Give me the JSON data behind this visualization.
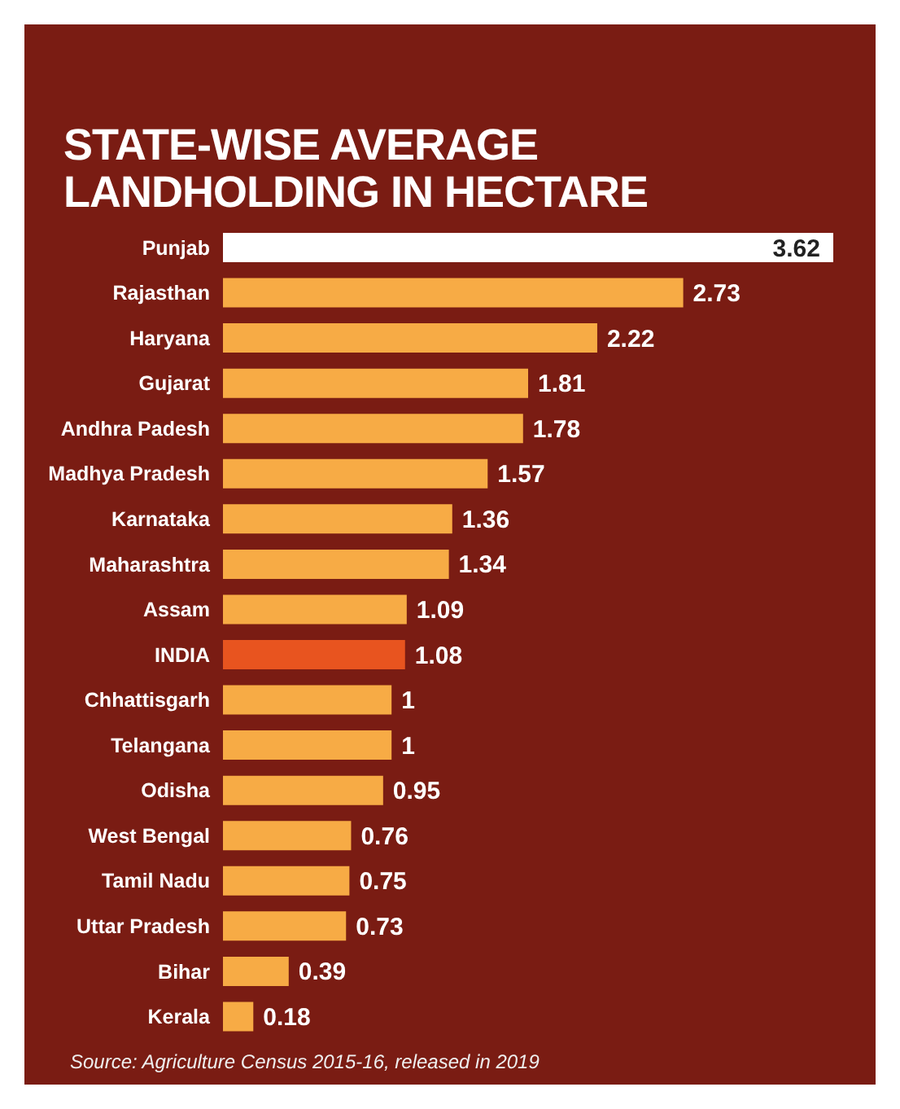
{
  "chart_data": {
    "type": "bar",
    "orientation": "horizontal",
    "title": "STATE-WISE AVERAGE\nLANDHOLDING IN HECTARE",
    "categories": [
      "Punjab",
      "Rajasthan",
      "Haryana",
      "Gujarat",
      "Andhra Padesh",
      "Madhya Pradesh",
      "Karnataka",
      "Maharashtra",
      "Assam",
      "INDIA",
      "Chhattisgarh",
      "Telangana",
      "Odisha",
      "West Bengal",
      "Tamil Nadu",
      "Uttar Pradesh",
      "Bihar",
      "Kerala"
    ],
    "values": [
      3.62,
      2.73,
      2.22,
      1.81,
      1.78,
      1.57,
      1.36,
      1.34,
      1.09,
      1.08,
      1,
      1,
      0.95,
      0.76,
      0.75,
      0.73,
      0.39,
      0.18
    ],
    "colors": [
      "#ffffff",
      "#f7ab45",
      "#f7ab45",
      "#f7ab45",
      "#f7ab45",
      "#f7ab45",
      "#f7ab45",
      "#f7ab45",
      "#f7ab45",
      "#e8541f",
      "#f7ab45",
      "#f7ab45",
      "#f7ab45",
      "#f7ab45",
      "#f7ab45",
      "#f7ab45",
      "#f7ab45",
      "#f7ab45"
    ],
    "data_labels": true,
    "legend": false,
    "grid": false,
    "tick_labels": "y",
    "annotations": [
      "Source: Agriculture Census 2015-16, released in 2019"
    ]
  }
}
